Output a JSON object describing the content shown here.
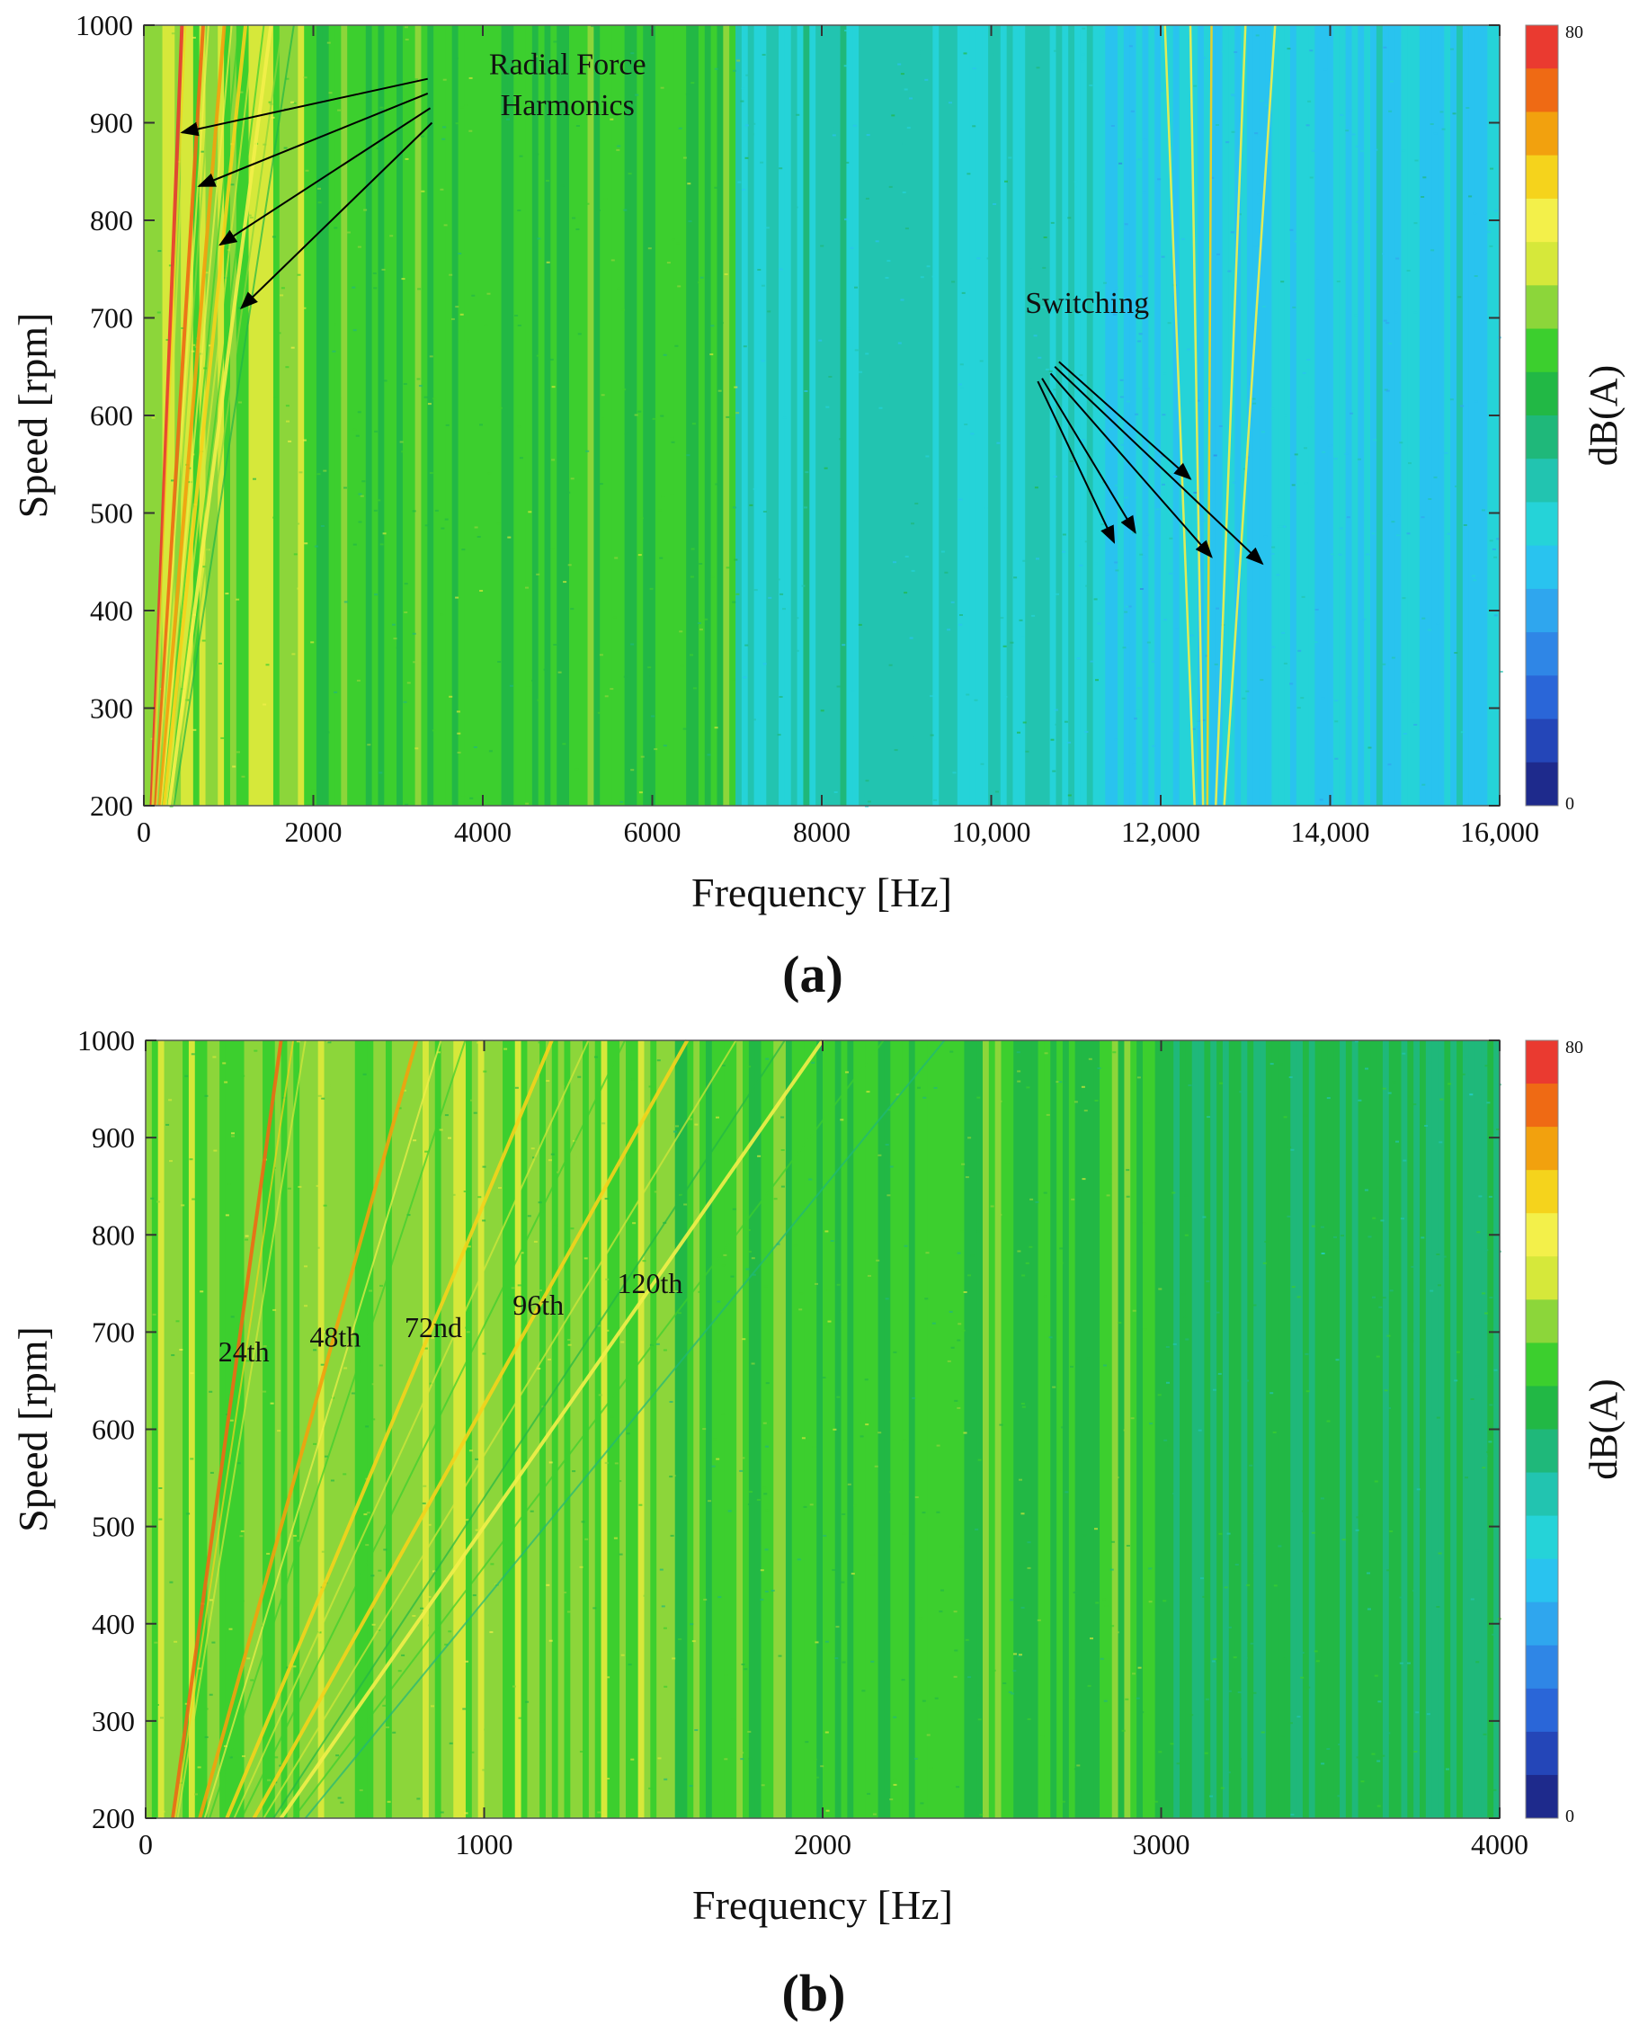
{
  "chart_data": [
    {
      "type": "heatmap",
      "panel_label": "(a)",
      "xlabel": "Frequency [Hz]",
      "ylabel": "Speed [rpm]",
      "colorbar_label": "dB(A)",
      "xlim": [
        0,
        16000
      ],
      "ylim": [
        200,
        1000
      ],
      "clim": [
        0,
        80
      ],
      "x_ticks": [
        0,
        2000,
        4000,
        6000,
        8000,
        10000,
        12000,
        14000,
        16000
      ],
      "x_tick_labels": [
        "0",
        "2000",
        "4000",
        "6000",
        "8000",
        "10,000",
        "12,000",
        "14,000",
        "16,000"
      ],
      "y_ticks": [
        200,
        300,
        400,
        500,
        600,
        700,
        800,
        900,
        1000
      ],
      "y_tick_labels": [
        "200",
        "300",
        "400",
        "500",
        "600",
        "700",
        "800",
        "900",
        "1000"
      ],
      "colorbar_tick_labels": [
        "80",
        "0"
      ],
      "annotations": [
        {
          "text": "Radial Force",
          "x": 5000,
          "y": 950
        },
        {
          "text": "Harmonics",
          "x": 5000,
          "y": 908
        }
      ],
      "annotations_switching": {
        "text": "Switching",
        "x": 10400,
        "y": 705
      },
      "arrows": [
        {
          "from": [
            3350,
            945
          ],
          "to": [
            450,
            890
          ]
        },
        {
          "from": [
            3350,
            930
          ],
          "to": [
            650,
            835
          ]
        },
        {
          "from": [
            3380,
            915
          ],
          "to": [
            900,
            775
          ]
        },
        {
          "from": [
            3400,
            900
          ],
          "to": [
            1150,
            710
          ]
        },
        {
          "from": [
            10550,
            635
          ],
          "to": [
            11450,
            470
          ]
        },
        {
          "from": [
            10600,
            638
          ],
          "to": [
            11700,
            480
          ]
        },
        {
          "from": [
            10700,
            643
          ],
          "to": [
            12600,
            455
          ]
        },
        {
          "from": [
            10750,
            650
          ],
          "to": [
            13200,
            448
          ]
        },
        {
          "from": [
            10800,
            655
          ],
          "to": [
            12350,
            535
          ]
        }
      ],
      "low_freq_harmonic_lines": [
        {
          "f_at_1000": 450,
          "level": 76
        },
        {
          "f_at_1000": 700,
          "level": 72
        },
        {
          "f_at_1000": 950,
          "level": 68
        },
        {
          "f_at_1000": 1200,
          "level": 66
        },
        {
          "f_at_1000": 1500,
          "level": 62
        }
      ],
      "switching_lines": [
        {
          "f_at_1000": 12050,
          "f_at_200": 12400,
          "level": 60
        },
        {
          "f_at_1000": 12350,
          "f_at_200": 12500,
          "level": 62
        },
        {
          "f_at_1000": 12600,
          "f_at_200": 12550,
          "level": 64
        },
        {
          "f_at_1000": 13000,
          "f_at_200": 12650,
          "level": 60
        },
        {
          "f_at_1000": 13350,
          "f_at_200": 12750,
          "level": 58
        }
      ],
      "background_bands_db": [
        {
          "from": 0,
          "to": 2000,
          "level": 52
        },
        {
          "from": 2000,
          "to": 7000,
          "level": 46
        },
        {
          "from": 7000,
          "to": 11300,
          "level": 32
        },
        {
          "from": 11300,
          "to": 13300,
          "level": 26
        },
        {
          "from": 13300,
          "to": 16000,
          "level": 28
        }
      ]
    },
    {
      "type": "heatmap",
      "panel_label": "(b)",
      "xlabel": "Frequency [Hz]",
      "ylabel": "Speed [rpm]",
      "colorbar_label": "dB(A)",
      "xlim": [
        0,
        4000
      ],
      "ylim": [
        200,
        1000
      ],
      "clim": [
        0,
        80
      ],
      "x_ticks": [
        0,
        1000,
        2000,
        3000,
        4000
      ],
      "x_tick_labels": [
        "0",
        "1000",
        "2000",
        "3000",
        "4000"
      ],
      "y_ticks": [
        200,
        300,
        400,
        500,
        600,
        700,
        800,
        900,
        1000
      ],
      "y_tick_labels": [
        "200",
        "300",
        "400",
        "500",
        "600",
        "700",
        "800",
        "900",
        "1000"
      ],
      "colorbar_tick_labels": [
        "80",
        "0"
      ],
      "annotations": [
        {
          "text": "24th",
          "x": 290,
          "y": 670
        },
        {
          "text": "48th",
          "x": 560,
          "y": 685
        },
        {
          "text": "72nd",
          "x": 850,
          "y": 695
        },
        {
          "text": "96th",
          "x": 1160,
          "y": 718
        },
        {
          "text": "120th",
          "x": 1490,
          "y": 740
        }
      ],
      "order_lines": [
        {
          "order": 24,
          "f_at_1000": 400,
          "level": 74
        },
        {
          "order": 48,
          "f_at_1000": 800,
          "level": 68
        },
        {
          "order": 72,
          "f_at_1000": 1200,
          "level": 66
        },
        {
          "order": 96,
          "f_at_1000": 1600,
          "level": 64
        },
        {
          "order": 120,
          "f_at_1000": 2000,
          "level": 58
        }
      ],
      "background_bands_db": [
        {
          "from": 0,
          "to": 1500,
          "level": 50
        },
        {
          "from": 1500,
          "to": 3000,
          "level": 46
        },
        {
          "from": 3000,
          "to": 4000,
          "level": 40
        }
      ]
    }
  ],
  "colors": {
    "colormap": [
      "#1e2a8c",
      "#2446b8",
      "#2a66d8",
      "#2f86e6",
      "#2fa6ee",
      "#29c3ef",
      "#25d3d8",
      "#22c4b0",
      "#1fb87a",
      "#22b845",
      "#3ccf2e",
      "#8cd63a",
      "#d6e83a",
      "#f3f04a",
      "#f5d31c",
      "#f2a10e",
      "#ef6a14",
      "#ea3a30"
    ]
  }
}
